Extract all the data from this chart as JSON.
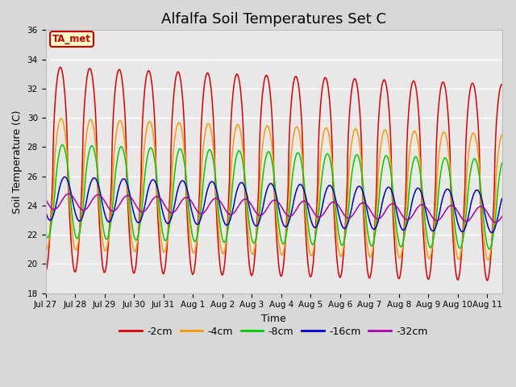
{
  "title": "Alfalfa Soil Temperatures Set C",
  "xlabel": "Time",
  "ylabel": "Soil Temperature (C)",
  "ylim": [
    18,
    36
  ],
  "tick_labels": [
    "Jul 27",
    "Jul 28",
    "Jul 29",
    "Jul 30",
    "Jul 31",
    "Aug 1",
    "Aug 2",
    "Aug 3",
    "Aug 4",
    "Aug 5",
    "Aug 6",
    "Aug 7",
    "Aug 8",
    "Aug 9",
    "Aug 10",
    "Aug 11"
  ],
  "series": [
    {
      "label": "-2cm",
      "color": "#dd0000",
      "amplitude": 7.0,
      "mean": 26.5,
      "phase_lag": 0.0,
      "sharpness": 3.0,
      "amp_decay": 0.0
    },
    {
      "label": "-4cm",
      "color": "#ff9900",
      "amplitude": 4.5,
      "mean": 25.5,
      "phase_lag": 0.18,
      "sharpness": 2.0,
      "amp_decay": 0.0
    },
    {
      "label": "-8cm",
      "color": "#00cc00",
      "amplitude": 3.2,
      "mean": 25.0,
      "phase_lag": 0.45,
      "sharpness": 1.0,
      "amp_decay": 0.0
    },
    {
      "label": "-16cm",
      "color": "#0000cc",
      "amplitude": 1.5,
      "mean": 24.5,
      "phase_lag": 0.95,
      "sharpness": 0.5,
      "amp_decay": 0.0
    },
    {
      "label": "-32cm",
      "color": "#aa00aa",
      "amplitude": 0.55,
      "mean": 24.3,
      "phase_lag": 1.8,
      "sharpness": 0.2,
      "amp_decay": 0.0
    }
  ],
  "annotation_label": "TA_met",
  "annotation_color": "#cc0000",
  "annotation_bg": "#ffffcc",
  "plot_bg": "#e8e8e8",
  "fig_bg": "#d8d8d8",
  "grid_color": "#ffffff",
  "title_fontsize": 13,
  "axis_fontsize": 9,
  "tick_fontsize": 7.5,
  "legend_fontsize": 9
}
